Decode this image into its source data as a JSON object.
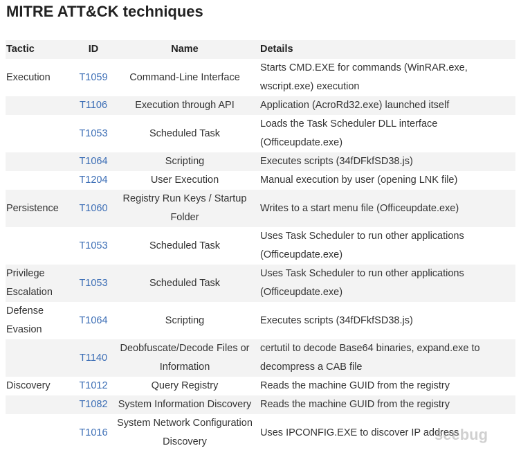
{
  "title": "MITRE ATT&CK techniques",
  "table": {
    "header": [
      "Tactic",
      "ID",
      "Name",
      "Details"
    ],
    "rows": [
      [
        "Execution",
        "T1059",
        "Command-Line Interface",
        "Starts CMD.EXE for commands (WinRAR.exe, wscript.exe) execution"
      ],
      [
        null,
        "T1106",
        "Execution through API",
        "Application (AcroRd32.exe) launched itself"
      ],
      [
        null,
        "T1053",
        "Scheduled Task",
        "Loads the Task Scheduler DLL interface (Officeupdate.exe)"
      ],
      [
        null,
        "T1064",
        "Scripting",
        "Executes scripts (34fDFkfSD38.js)"
      ],
      [
        null,
        "T1204",
        "User Execution",
        "Manual execution by user (opening LNK file)"
      ],
      [
        "Persistence",
        "T1060",
        "Registry Run Keys / Startup Folder",
        "Writes to a start menu file (Officeupdate.exe)"
      ],
      [
        null,
        "T1053",
        "Scheduled Task",
        "Uses Task Scheduler to run other applications (Officeupdate.exe)"
      ],
      [
        "Privilege Escalation",
        "T1053",
        "Scheduled Task",
        "Uses Task Scheduler to run other applications (Officeupdate.exe)"
      ],
      [
        "Defense Evasion",
        "T1064",
        "Scripting",
        "Executes scripts (34fDFkfSD38.js)"
      ],
      [
        null,
        "T1140",
        "Deobfuscate/Decode Files or Information",
        "certutil to decode Base64 binaries, expand.exe to decompress a CAB file"
      ],
      [
        "Discovery",
        "T1012",
        "Query Registry",
        "Reads the machine GUID from the registry"
      ],
      [
        null,
        "T1082",
        "System Information Discovery",
        "Reads the machine GUID from the registry"
      ],
      [
        null,
        "T1016",
        "System Network Configuration Discovery",
        "Uses IPCONFIG.EXE to discover IP address"
      ]
    ]
  },
  "watermark": "seebug"
}
